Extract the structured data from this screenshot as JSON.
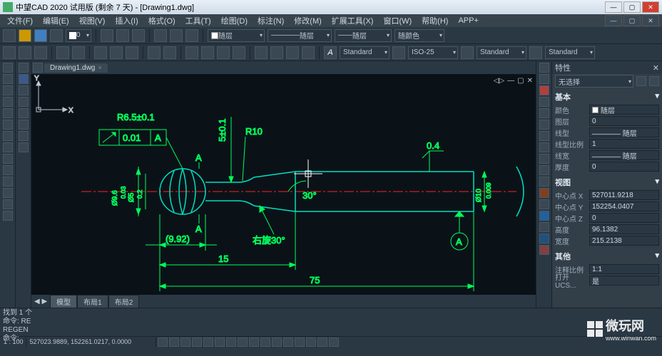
{
  "title": "中望CAD 2020 试用版 (剩余 7 天) - [Drawing1.dwg]",
  "menus": [
    "文件(F)",
    "编辑(E)",
    "视图(V)",
    "插入(I)",
    "格式(O)",
    "工具(T)",
    "绘图(D)",
    "标注(N)",
    "修改(M)",
    "扩展工具(X)",
    "窗口(W)",
    "帮助(H)",
    "APP+"
  ],
  "tb1": {
    "layer_dd": "随层",
    "linetype_dd": "随层",
    "lw_dd": "随层",
    "color_dd": "随颜色"
  },
  "tb2": {
    "style1": "Standard",
    "style2": "ISO-25",
    "style3": "Standard",
    "style4": "Standard"
  },
  "doc_tab": "Drawing1.dwg",
  "layout_tabs": {
    "arrows": "◀ ▶",
    "tabs": [
      "模型",
      "布局1",
      "布局2"
    ],
    "active": 0
  },
  "props": {
    "title": "特性",
    "selection": "无选择",
    "basic_title": "基本",
    "basic": [
      {
        "k": "颜色",
        "v": "随层",
        "swatch": true
      },
      {
        "k": "图层",
        "v": "0"
      },
      {
        "k": "线型",
        "v": "———— 随层"
      },
      {
        "k": "线型比例",
        "v": "1"
      },
      {
        "k": "线宽",
        "v": "———— 随层"
      },
      {
        "k": "厚度",
        "v": "0"
      }
    ],
    "view_title": "视图",
    "view": [
      {
        "k": "中心点 X",
        "v": "527011.9218"
      },
      {
        "k": "中心点 Y",
        "v": "152254.0407"
      },
      {
        "k": "中心点 Z",
        "v": "0"
      },
      {
        "k": "高度",
        "v": "96.1382"
      },
      {
        "k": "宽度",
        "v": "215.2138"
      }
    ],
    "misc_title": "其他",
    "misc": [
      {
        "k": "注释比例",
        "v": "1:1"
      },
      {
        "k": "打开 UCS...",
        "v": "是"
      }
    ]
  },
  "cmdline": {
    "l1": "找到 1 个",
    "l2": "命令: RE",
    "l3": "REGEN",
    "l4": "命令:"
  },
  "status": {
    "scale": "1 : 100",
    "coords": "527023.9889, 152261.0217, 0.0000"
  },
  "drawing": {
    "stroke_green": "#00ff5a",
    "stroke_cyan": "#00e0c0",
    "stroke_red": "#ff2020",
    "bg": "#0a1218",
    "labels": {
      "r65": "R6.5±0.1",
      "tol": "0.01",
      "datum": "A",
      "a_up": "A",
      "a_dn": "A",
      "r10": "R10",
      "v5p01": "5±0.1",
      "deg30": "30°",
      "youxuan": "右旋30°",
      "p992": "(9.92)",
      "d15": "15",
      "d75": "75",
      "p04": "0.4",
      "datum_a_r": "A",
      "d96": "Ø9.6",
      "d003": "0.03",
      "d5": "Ø5",
      "d02": "0.2",
      "d10_r": "Ø10",
      "d009": "0.009"
    }
  },
  "watermark": {
    "main": "微玩网",
    "sub": "www.winwan.com"
  }
}
